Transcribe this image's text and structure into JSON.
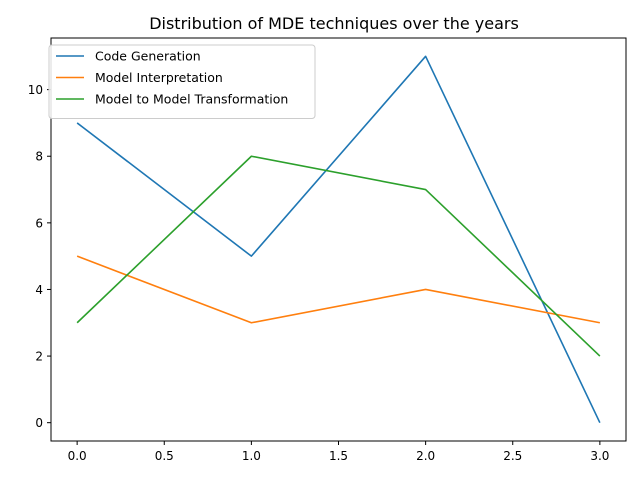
{
  "chart_data": {
    "type": "line",
    "title": "Distribution of MDE techniques over the years",
    "xlabel": "",
    "ylabel": "",
    "x": [
      0,
      1,
      2,
      3
    ],
    "xlim": [
      -0.15,
      3.15
    ],
    "ylim": [
      -0.55,
      11.55
    ],
    "xticks": [
      "0.0",
      "0.5",
      "1.0",
      "1.5",
      "2.0",
      "2.5",
      "3.0"
    ],
    "yticks": [
      "0",
      "2",
      "4",
      "6",
      "8",
      "10"
    ],
    "grid": false,
    "legend_position": "top-left",
    "series": [
      {
        "name": "Code Generation",
        "color": "#1f77b4",
        "values": [
          9,
          5,
          11,
          0
        ]
      },
      {
        "name": "Model Interpretation",
        "color": "#ff7f0e",
        "values": [
          5,
          3,
          4,
          3
        ]
      },
      {
        "name": "Model to Model Transformation",
        "color": "#2ca02c",
        "values": [
          3,
          8,
          7,
          2
        ]
      }
    ]
  }
}
